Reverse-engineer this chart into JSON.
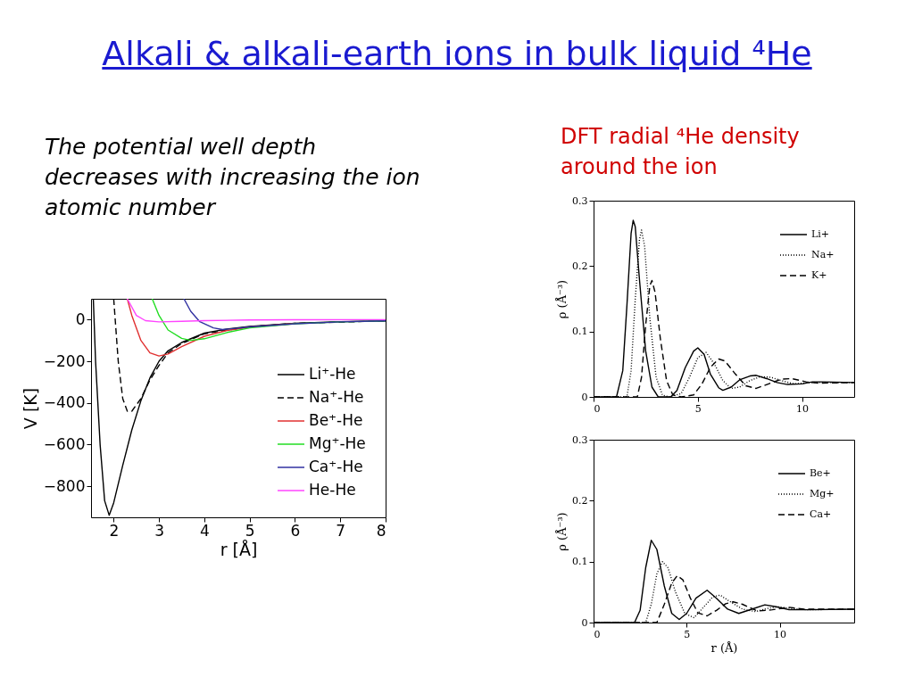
{
  "chart_data": [
    {
      "type": "line",
      "title": "Alkali & alkali-earth ions in bulk liquid ⁴He",
      "annotations": [
        "The potential well depth decreases with increasing the ion atomic number"
      ],
      "xlabel": "r [Å]",
      "ylabel": "V [K]",
      "xlim": [
        1.5,
        8
      ],
      "ylim": [
        -950,
        100
      ],
      "xticks": [
        2,
        3,
        4,
        5,
        6,
        7,
        8
      ],
      "yticks": [
        -800,
        -600,
        -400,
        -200,
        0
      ],
      "grid": false,
      "legend": "bottom right",
      "series": [
        {
          "name": "Li⁺-He",
          "color": "#000000",
          "line_style": "solid",
          "x": [
            1.55,
            1.6,
            1.7,
            1.8,
            1.9,
            2.0,
            2.2,
            2.4,
            2.6,
            2.8,
            3.0,
            3.2,
            3.5,
            4,
            4.5,
            5,
            6,
            7,
            8
          ],
          "values": [
            100,
            -200,
            -600,
            -870,
            -940,
            -880,
            -700,
            -530,
            -390,
            -280,
            -200,
            -150,
            -110,
            -65,
            -45,
            -33,
            -18,
            -10,
            -6
          ]
        },
        {
          "name": "Na⁺-He",
          "color": "#000000",
          "line_style": "dashed",
          "x": [
            2.0,
            2.1,
            2.2,
            2.3,
            2.4,
            2.6,
            2.8,
            3.0,
            3.2,
            3.5,
            4,
            5,
            6,
            8
          ],
          "values": [
            100,
            -200,
            -380,
            -440,
            -440,
            -380,
            -290,
            -220,
            -160,
            -115,
            -68,
            -34,
            -18,
            -6
          ]
        },
        {
          "name": "Be⁺-He",
          "color": "#e03030",
          "line_style": "solid",
          "x": [
            2.3,
            2.4,
            2.6,
            2.8,
            3.0,
            3.2,
            3.5,
            4,
            4.5,
            5,
            6
          ],
          "values": [
            100,
            20,
            -100,
            -160,
            -175,
            -165,
            -130,
            -80,
            -52,
            -36,
            -19
          ]
        },
        {
          "name": "Mg⁺-He",
          "color": "#22dd22",
          "line_style": "solid",
          "x": [
            2.85,
            3.0,
            3.2,
            3.5,
            3.7,
            4,
            4.5,
            5,
            6,
            7,
            8
          ],
          "values": [
            100,
            20,
            -50,
            -90,
            -100,
            -92,
            -62,
            -40,
            -20,
            -11,
            -6
          ]
        },
        {
          "name": "Ca⁺-He",
          "color": "#3030a0",
          "line_style": "solid",
          "x": [
            3.55,
            3.7,
            3.9,
            4.2,
            4.4,
            4.7,
            5,
            6,
            7,
            8
          ],
          "values": [
            100,
            40,
            -10,
            -40,
            -48,
            -42,
            -35,
            -20,
            -11,
            -6
          ]
        },
        {
          "name": "He-He",
          "color": "#ff44ff",
          "line_style": "solid",
          "x": [
            2.3,
            2.5,
            2.7,
            3.0,
            3.5,
            4,
            5,
            6,
            8
          ],
          "values": [
            100,
            20,
            -5,
            -11,
            -8,
            -5,
            -2,
            -1,
            0
          ]
        }
      ]
    },
    {
      "type": "line",
      "title": "DFT radial ⁴He density around the ion",
      "ylabel": "ρ (Å⁻³)",
      "xlim": [
        0,
        12.5
      ],
      "ylim": [
        0,
        0.3
      ],
      "xticks": [
        0,
        5,
        10
      ],
      "yticks": [
        0,
        0.1,
        0.2,
        0.3
      ],
      "grid": false,
      "legend": "top right",
      "series": [
        {
          "name": "Li+",
          "color": "#000000",
          "line_style": "solid",
          "x": [
            0,
            1.1,
            1.4,
            1.6,
            1.8,
            1.9,
            2.0,
            2.2,
            2.5,
            2.8,
            3.1,
            3.7,
            4.0,
            4.4,
            4.8,
            5.0,
            5.3,
            5.6,
            6.0,
            6.2,
            6.6,
            7.0,
            7.5,
            7.8,
            8.3,
            8.8,
            9.3,
            10,
            10.5,
            11,
            12.5
          ],
          "values": [
            0,
            0,
            0.04,
            0.14,
            0.25,
            0.27,
            0.26,
            0.18,
            0.07,
            0.015,
            0,
            0,
            0.01,
            0.045,
            0.07,
            0.075,
            0.065,
            0.035,
            0.014,
            0.01,
            0.015,
            0.026,
            0.032,
            0.033,
            0.028,
            0.022,
            0.019,
            0.02,
            0.023,
            0.023,
            0.022
          ]
        },
        {
          "name": "Na+",
          "color": "#000000",
          "line_style": "dotted",
          "x": [
            0,
            1.6,
            1.8,
            2.0,
            2.2,
            2.3,
            2.45,
            2.7,
            3.0,
            3.3,
            3.6,
            4.2,
            4.6,
            5.0,
            5.4,
            5.8,
            6.2,
            6.6,
            7.0,
            7.5,
            8.0,
            8.5,
            9.0,
            9.6,
            10.5,
            12.5
          ],
          "values": [
            0,
            0,
            0.04,
            0.15,
            0.24,
            0.255,
            0.23,
            0.12,
            0.03,
            0.003,
            0,
            0.005,
            0.03,
            0.06,
            0.068,
            0.05,
            0.025,
            0.013,
            0.015,
            0.025,
            0.031,
            0.03,
            0.025,
            0.02,
            0.022,
            0.022
          ]
        },
        {
          "name": "K+",
          "color": "#000000",
          "line_style": "dashed",
          "x": [
            0,
            2.1,
            2.3,
            2.5,
            2.7,
            2.8,
            2.95,
            3.2,
            3.5,
            3.8,
            4.2,
            4.8,
            5.2,
            5.6,
            6.0,
            6.3,
            6.8,
            7.3,
            7.8,
            8.4,
            9.0,
            9.5,
            10.2,
            10.8,
            12.5
          ],
          "values": [
            0,
            0,
            0.03,
            0.11,
            0.17,
            0.178,
            0.16,
            0.09,
            0.025,
            0.003,
            0,
            0.003,
            0.02,
            0.045,
            0.058,
            0.055,
            0.035,
            0.017,
            0.013,
            0.02,
            0.027,
            0.028,
            0.023,
            0.021,
            0.022
          ]
        }
      ]
    },
    {
      "type": "line",
      "xlabel": "r (Å)",
      "ylabel": "ρ (Å⁻³)",
      "xlim": [
        0,
        14
      ],
      "ylim": [
        0,
        0.3
      ],
      "xticks": [
        0,
        5,
        10
      ],
      "yticks": [
        0,
        0.1,
        0.2,
        0.3
      ],
      "grid": false,
      "legend": "top right",
      "series": [
        {
          "name": "Be+",
          "color": "#000000",
          "line_style": "solid",
          "x": [
            0,
            2.2,
            2.5,
            2.8,
            3.1,
            3.4,
            3.8,
            4.2,
            4.6,
            5.0,
            5.5,
            6.1,
            6.6,
            7.2,
            7.8,
            8.5,
            9.2,
            9.8,
            10.5,
            11.5,
            14
          ],
          "values": [
            0,
            0,
            0.02,
            0.09,
            0.135,
            0.12,
            0.06,
            0.015,
            0.005,
            0.015,
            0.04,
            0.053,
            0.04,
            0.022,
            0.015,
            0.022,
            0.029,
            0.026,
            0.021,
            0.021,
            0.022
          ]
        },
        {
          "name": "Mg+",
          "color": "#000000",
          "line_style": "dotted",
          "x": [
            0,
            2.8,
            3.1,
            3.4,
            3.7,
            4.0,
            4.4,
            4.9,
            5.4,
            5.9,
            6.4,
            6.8,
            7.3,
            8.0,
            8.7,
            9.3,
            9.9,
            10.6,
            11.5,
            14
          ],
          "values": [
            0,
            0,
            0.03,
            0.08,
            0.1,
            0.09,
            0.05,
            0.015,
            0.008,
            0.025,
            0.042,
            0.045,
            0.035,
            0.022,
            0.018,
            0.023,
            0.026,
            0.023,
            0.021,
            0.022
          ]
        },
        {
          "name": "Ca+",
          "color": "#000000",
          "line_style": "dashed",
          "x": [
            0,
            3.4,
            3.8,
            4.2,
            4.5,
            4.8,
            5.2,
            5.6,
            6.1,
            6.6,
            7.1,
            7.5,
            8.0,
            8.8,
            9.6,
            10.5,
            11.3,
            14
          ],
          "values": [
            0,
            0,
            0.03,
            0.065,
            0.077,
            0.07,
            0.04,
            0.016,
            0.011,
            0.02,
            0.031,
            0.034,
            0.03,
            0.019,
            0.021,
            0.025,
            0.022,
            0.022
          ]
        }
      ]
    }
  ]
}
